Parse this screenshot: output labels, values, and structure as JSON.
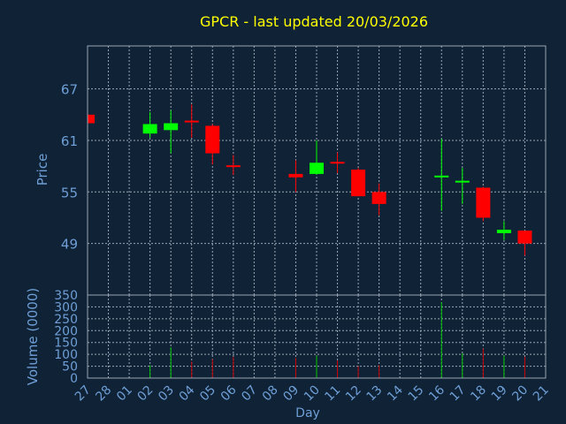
{
  "colors": {
    "background": "#0f2236",
    "title": "#ffff00",
    "axis_text": "#6f9fd6",
    "grid": "#9aa7b4",
    "frame": "#9aa7b4",
    "up": "#00ff00",
    "down": "#ff0000",
    "volume_up": "#00c800",
    "volume_down": "#c80000"
  },
  "chart_data": {
    "type": "candlestick",
    "title": "GPCR - last updated 20/03/2026",
    "xlabel": "Day",
    "price_panel": {
      "ylabel": "Price",
      "ylim": [
        43.0,
        72.0
      ],
      "yticks": [
        49,
        55,
        61,
        67
      ],
      "grid": true
    },
    "volume_panel": {
      "ylabel": "Volume (0000)",
      "ylim": [
        0,
        350
      ],
      "yticks": [
        0,
        50,
        100,
        150,
        200,
        250,
        300,
        350
      ],
      "grid": true
    },
    "x_tick_labels": [
      "27",
      "28",
      "01",
      "02",
      "03",
      "04",
      "05",
      "06",
      "07",
      "08",
      "09",
      "10",
      "11",
      "12",
      "13",
      "14",
      "15",
      "16",
      "17",
      "18",
      "19",
      "20",
      "21"
    ],
    "candles": [
      {
        "day": "27",
        "open": 64.0,
        "high": 64.0,
        "low": 63.0,
        "close": 63.0,
        "volume": 0
      },
      {
        "day": "02",
        "open": 61.8,
        "high": 64.3,
        "low": 61.3,
        "close": 62.9,
        "volume": 55
      },
      {
        "day": "03",
        "open": 62.2,
        "high": 64.5,
        "low": 59.5,
        "close": 63.0,
        "volume": 130
      },
      {
        "day": "04",
        "open": 63.2,
        "high": 65.2,
        "low": 61.3,
        "close": 63.1,
        "volume": 70
      },
      {
        "day": "05",
        "open": 62.7,
        "high": 62.9,
        "low": 58.2,
        "close": 59.5,
        "volume": 80
      },
      {
        "day": "06",
        "open": 58.0,
        "high": 59.3,
        "low": 57.0,
        "close": 57.8,
        "volume": 90
      },
      {
        "day": "09",
        "open": 57.1,
        "high": 58.7,
        "low": 55.0,
        "close": 56.7,
        "volume": 85
      },
      {
        "day": "10",
        "open": 57.1,
        "high": 61.0,
        "low": 57.0,
        "close": 58.4,
        "volume": 95
      },
      {
        "day": "11",
        "open": 58.4,
        "high": 59.6,
        "low": 57.2,
        "close": 58.2,
        "volume": 75
      },
      {
        "day": "12",
        "open": 57.6,
        "high": 57.8,
        "low": 54.5,
        "close": 54.5,
        "volume": 50
      },
      {
        "day": "13",
        "open": 55.0,
        "high": 56.0,
        "low": 52.3,
        "close": 53.6,
        "volume": 55
      },
      {
        "day": "16",
        "open": 56.6,
        "high": 61.2,
        "low": 52.8,
        "close": 56.8,
        "volume": 320
      },
      {
        "day": "17",
        "open": 56.0,
        "high": 57.8,
        "low": 53.6,
        "close": 56.2,
        "volume": 105
      },
      {
        "day": "18",
        "open": 55.5,
        "high": 55.6,
        "low": 51.6,
        "close": 52.0,
        "volume": 125
      },
      {
        "day": "19",
        "open": 50.2,
        "high": 51.6,
        "low": 49.4,
        "close": 50.6,
        "volume": 95
      },
      {
        "day": "20",
        "open": 50.5,
        "high": 50.5,
        "low": 47.6,
        "close": 49.0,
        "volume": 90
      }
    ]
  }
}
